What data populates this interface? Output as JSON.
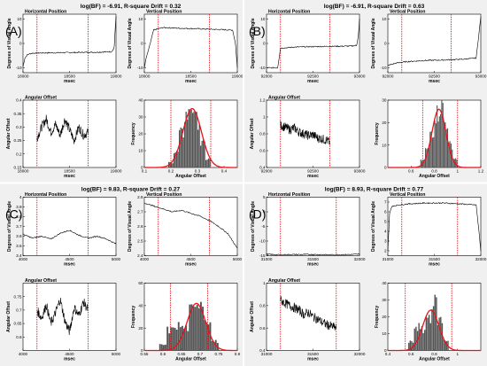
{
  "panels": [
    {
      "letter": "(A)",
      "title": "log(BF) = -6.91, R-square Drift = 0.32",
      "horizontal": {
        "title": "Horizontal Position",
        "ylabel": "Degrees of Visual Angle",
        "xlabel": "msec",
        "xlim": [
          18000,
          19000
        ],
        "ylim": [
          -12,
          12
        ],
        "xticks": [
          18000,
          18500,
          19000
        ],
        "yticks": [
          -10,
          0,
          10
        ],
        "markers": [
          18150,
          18700
        ]
      },
      "vertical": {
        "title": "Vertical Position",
        "ylabel": "Degrees of Visual Angle",
        "xlabel": "msec",
        "xlim": [
          18000,
          19000
        ],
        "ylim": [
          -12,
          12
        ],
        "xticks": [
          18000,
          18500,
          19000
        ],
        "yticks": [
          -10,
          0,
          10
        ],
        "markers": [
          18150,
          18700
        ]
      },
      "offset": {
        "title": "Angular Offset",
        "ylabel": "Angular Offset",
        "xlabel": "msec",
        "xlim": [
          18000,
          19000
        ],
        "ylim": [
          0.15,
          0.4
        ],
        "xticks": [
          18000,
          18500,
          19000
        ],
        "yticks": [
          0.15,
          0.2,
          0.25,
          0.3,
          0.35,
          0.4
        ],
        "markers": [
          18150,
          18700
        ]
      },
      "hist": {
        "ylabel": "Frequency",
        "xlabel": "Angular Offset",
        "xlim": [
          0.1,
          0.45
        ],
        "ylim": [
          0,
          40
        ],
        "xticks": [
          0.1,
          0.2,
          0.3,
          0.4
        ],
        "yticks": [
          0,
          10,
          20,
          30,
          40
        ],
        "markers": [
          0.2,
          0.35
        ]
      }
    },
    {
      "letter": "(B)",
      "title": "log(BF) = -6.91, R-square Drift = 0.63",
      "horizontal": {
        "title": "Horizontal Position",
        "ylabel": "Degrees of Visual Angle",
        "xlabel": "msec",
        "xlim": [
          92000,
          93000
        ],
        "ylim": [
          -12,
          12
        ],
        "xticks": [
          92000,
          92500,
          93000
        ],
        "yticks": [
          -10,
          0,
          10
        ],
        "markers": [
          92150,
          92680
        ]
      },
      "vertical": {
        "title": "Vertical Position",
        "ylabel": "Degrees of Visual Angle",
        "xlabel": "msec",
        "xlim": [
          92000,
          93000
        ],
        "ylim": [
          -12,
          12
        ],
        "xticks": [
          92000,
          92500,
          93000
        ],
        "yticks": [
          -10,
          0,
          10
        ],
        "markers": [
          92150,
          92680
        ]
      },
      "offset": {
        "title": "Angular Offset",
        "ylabel": "Angular Offset",
        "xlabel": "msec",
        "xlim": [
          92000,
          93000
        ],
        "ylim": [
          0.4,
          1.2
        ],
        "xticks": [
          92000,
          92500,
          93000
        ],
        "yticks": [
          0.4,
          0.6,
          0.8,
          1,
          1.2
        ],
        "markers": [
          92150,
          92680
        ]
      },
      "hist": {
        "ylabel": "Frequency",
        "xlabel": "Angular Offset",
        "xlim": [
          0.4,
          1.2
        ],
        "ylim": [
          0,
          30
        ],
        "xticks": [
          0.6,
          0.8,
          1,
          1.2
        ],
        "yticks": [
          0,
          10,
          20,
          30
        ],
        "markers": [
          0.7,
          1.0
        ]
      }
    },
    {
      "letter": "(C)",
      "title": "log(BF) = 9.83, R-square Drift = 0.27",
      "horizontal": {
        "title": "Horizontal Position",
        "ylabel": "Degrees of Visual Angle",
        "xlabel": "msec",
        "xlim": [
          4000,
          5000
        ],
        "ylim": [
          3.4,
          4.0
        ],
        "xticks": [
          4000,
          4500,
          5000
        ],
        "yticks": [
          3.4,
          3.5,
          3.6,
          3.7,
          3.8,
          3.9,
          4.0
        ],
        "markers": [
          4150,
          4700
        ]
      },
      "vertical": {
        "title": "Vertical Position",
        "ylabel": "Degrees of Visual Angle",
        "xlabel": "msec",
        "xlim": [
          4000,
          5000
        ],
        "ylim": [
          2.4,
          2.8
        ],
        "xticks": [
          4000,
          4500,
          5000
        ],
        "yticks": [
          2.4,
          2.5,
          2.6,
          2.7,
          2.8
        ],
        "markers": [
          4150,
          4700
        ]
      },
      "offset": {
        "title": "Angular Offset",
        "ylabel": "Angular Offset",
        "xlabel": "msec",
        "xlim": [
          4000,
          5000
        ],
        "ylim": [
          0.55,
          0.8
        ],
        "xticks": [
          4000,
          4500,
          5000
        ],
        "yticks": [
          0.6,
          0.65,
          0.7,
          0.75
        ],
        "markers": [
          4150,
          4700
        ]
      },
      "hist": {
        "ylabel": "Frequency",
        "xlabel": "Angular Offset",
        "xlim": [
          0.55,
          0.8
        ],
        "ylim": [
          0,
          60
        ],
        "xticks": [
          0.55,
          0.6,
          0.65,
          0.7,
          0.75,
          0.8
        ],
        "yticks": [
          0,
          20,
          40,
          60
        ],
        "markers": [
          0.62,
          0.72
        ]
      }
    },
    {
      "letter": "(D)",
      "title": "log(BF) = 8.93, R-square Drift = 0.77",
      "horizontal": {
        "title": "Horizontal Position",
        "ylabel": "Degrees of Visual Angle",
        "xlabel": "msec",
        "xlim": [
          31000,
          32000
        ],
        "ylim": [
          -15,
          5
        ],
        "xticks": [
          31000,
          31500,
          32000
        ],
        "yticks": [
          -15,
          -10,
          -5,
          0,
          5
        ],
        "markers": [
          31150,
          31750
        ]
      },
      "vertical": {
        "title": "Vertical Position",
        "ylabel": "Degrees of Visual Angle",
        "xlabel": "msec",
        "xlim": [
          31000,
          32000
        ],
        "ylim": [
          1.5,
          7.5
        ],
        "xticks": [
          31000,
          31500,
          32000
        ],
        "yticks": [
          2,
          3,
          4,
          5,
          6,
          7
        ],
        "markers": [
          31150,
          31750
        ]
      },
      "offset": {
        "title": "Angular Offset",
        "ylabel": "Angular Offset",
        "xlabel": "msec",
        "xlim": [
          31000,
          32000
        ],
        "ylim": [
          0.4,
          1.0
        ],
        "xticks": [
          31000,
          31500,
          32000
        ],
        "yticks": [
          0.4,
          0.6,
          0.8,
          1.0
        ],
        "markers": [
          31150,
          31750
        ]
      },
      "hist": {
        "ylabel": "Frequency",
        "xlabel": "Angular Offset",
        "xlim": [
          0.4,
          1.2
        ],
        "ylim": [
          0,
          40
        ],
        "xticks": [
          0.4,
          0.6,
          0.8,
          1
        ],
        "yticks": [
          0,
          10,
          20,
          30,
          40
        ],
        "markers": [
          0.55,
          0.95
        ]
      }
    }
  ],
  "colors": {
    "trace": "#000000",
    "marker": "#e8131b",
    "fit": "#e8131b",
    "bars": "#555555",
    "background": "#f0f0f0"
  },
  "chart_data": [
    {
      "type": "line",
      "panel": "A",
      "horizontal_position": {
        "x": [
          18000,
          18020,
          18050,
          18100,
          18200,
          18400,
          18600,
          18800,
          18950,
          18980,
          18990,
          19000
        ],
        "y": [
          -9.5,
          -6,
          -4.5,
          -4,
          -3.9,
          -3.8,
          -3.7,
          -3.6,
          -3.4,
          -2,
          5,
          11
        ]
      },
      "vertical_position": {
        "x": [
          18000,
          18020,
          18050,
          18100,
          18200,
          18400,
          18600,
          18800,
          18950,
          18980,
          19000
        ],
        "y": [
          -10,
          -6,
          -2,
          5.5,
          6.5,
          6.2,
          6,
          5.7,
          5.5,
          0,
          -10
        ]
      },
      "angular_offset": {
        "x": [
          18150,
          18200,
          18250,
          18300,
          18350,
          18400,
          18450,
          18500,
          18550,
          18600,
          18650,
          18700
        ],
        "y": [
          0.26,
          0.3,
          0.33,
          0.28,
          0.31,
          0.27,
          0.33,
          0.29,
          0.25,
          0.3,
          0.27,
          0.28
        ]
      },
      "histogram": {
        "x": [
          0.2,
          0.22,
          0.24,
          0.26,
          0.28,
          0.3,
          0.32,
          0.34
        ],
        "y": [
          3,
          9,
          20,
          31,
          36,
          28,
          14,
          5
        ],
        "fit_mean": 0.28,
        "fit_sd": 0.035,
        "fit_peak": 35
      }
    },
    {
      "type": "line",
      "panel": "B",
      "horizontal_position": {
        "x": [
          92000,
          92120,
          92150,
          92300,
          92500,
          92700,
          92900,
          92970,
          92990,
          93000
        ],
        "y": [
          -10,
          -10,
          -2,
          -1.5,
          -1.3,
          -1.2,
          -1.1,
          -0.8,
          4,
          10
        ]
      },
      "vertical_position": {
        "x": [
          92000,
          92100,
          92200,
          92400,
          92600,
          92800,
          92950,
          92980,
          93000
        ],
        "y": [
          -9,
          -8,
          -7.5,
          -7,
          -6.8,
          -6.5,
          -6,
          4,
          11
        ]
      },
      "angular_offset": {
        "x": [
          92150,
          92200,
          92250,
          92300,
          92350,
          92400,
          92450,
          92500,
          92550,
          92600,
          92650,
          92680
        ],
        "y": [
          0.9,
          0.88,
          0.85,
          0.87,
          0.82,
          0.8,
          0.78,
          0.79,
          0.75,
          0.74,
          0.72,
          0.7
        ]
      },
      "histogram": {
        "x": [
          0.7,
          0.74,
          0.78,
          0.82,
          0.86,
          0.9,
          0.94,
          0.98
        ],
        "y": [
          3,
          8,
          16,
          24,
          27,
          20,
          10,
          4
        ],
        "fit_mean": 0.84,
        "fit_sd": 0.06,
        "fit_peak": 26
      }
    },
    {
      "type": "line",
      "panel": "C",
      "horizontal_position": {
        "x": [
          4000,
          4100,
          4200,
          4300,
          4400,
          4500,
          4600,
          4700,
          4800,
          4900,
          5000
        ],
        "y": [
          3.62,
          3.58,
          3.6,
          3.57,
          3.63,
          3.66,
          3.61,
          3.58,
          3.6,
          3.57,
          3.52
        ]
      },
      "vertical_position": {
        "x": [
          4000,
          4100,
          4200,
          4300,
          4400,
          4500,
          4600,
          4700,
          4800,
          4900,
          5000
        ],
        "y": [
          2.76,
          2.74,
          2.72,
          2.7,
          2.71,
          2.69,
          2.67,
          2.64,
          2.6,
          2.55,
          2.45
        ]
      },
      "angular_offset": {
        "x": [
          4150,
          4200,
          4250,
          4300,
          4350,
          4400,
          4450,
          4500,
          4550,
          4600,
          4650,
          4700
        ],
        "y": [
          0.7,
          0.67,
          0.72,
          0.65,
          0.69,
          0.74,
          0.66,
          0.62,
          0.71,
          0.68,
          0.73,
          0.7
        ]
      },
      "histogram": {
        "x": [
          0.6,
          0.62,
          0.64,
          0.66,
          0.68,
          0.7,
          0.72,
          0.74
        ],
        "y": [
          5,
          18,
          22,
          20,
          35,
          45,
          28,
          8
        ],
        "fit_mean": 0.69,
        "fit_sd": 0.025,
        "fit_peak": 42
      }
    },
    {
      "type": "line",
      "panel": "D",
      "horizontal_position": {
        "x": [
          31000,
          31100,
          31300,
          31500,
          31700,
          31900,
          32000
        ],
        "y": [
          -14.5,
          -14.7,
          -14.6,
          -14.6,
          -14.7,
          -14.6,
          -14.5
        ]
      },
      "vertical_position": {
        "x": [
          31000,
          31020,
          31050,
          31200,
          31400,
          31600,
          31800,
          31950,
          31980,
          32000
        ],
        "y": [
          2,
          6,
          6.6,
          6.8,
          6.9,
          6.9,
          6.8,
          6.7,
          4,
          2
        ]
      },
      "angular_offset": {
        "x": [
          31150,
          31200,
          31250,
          31300,
          31350,
          31400,
          31450,
          31500,
          31550,
          31600,
          31650,
          31750
        ],
        "y": [
          0.85,
          0.82,
          0.8,
          0.78,
          0.76,
          0.72,
          0.74,
          0.7,
          0.68,
          0.65,
          0.63,
          0.6
        ]
      },
      "histogram": {
        "x": [
          0.6,
          0.65,
          0.7,
          0.75,
          0.8,
          0.85,
          0.9
        ],
        "y": [
          5,
          14,
          12,
          20,
          28,
          18,
          6
        ],
        "fit_mean": 0.77,
        "fit_sd": 0.07,
        "fit_peak": 24
      }
    }
  ]
}
